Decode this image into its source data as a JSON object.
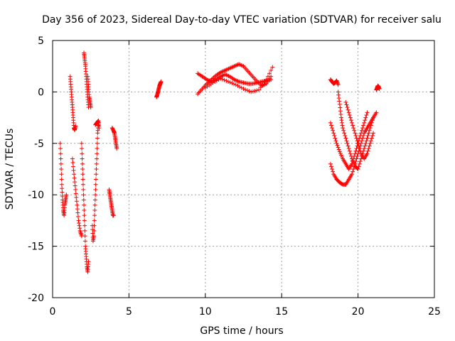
{
  "chart_data": {
    "type": "scatter",
    "title": "Day 356 of 2023, Sidereal Day-to-day VTEC variation (SDTVAR) for receiver salu",
    "xlabel": "GPS time / hours",
    "ylabel": "SDTVAR / TECUs",
    "xlim": [
      0,
      25
    ],
    "ylim": [
      -20,
      5
    ],
    "xticks": [
      0,
      5,
      10,
      15,
      20,
      25
    ],
    "yticks": [
      -20,
      -15,
      -10,
      -5,
      0,
      5
    ],
    "grid": true,
    "marker": "+",
    "color": "#ff0000",
    "series": [
      {
        "name": "SDTVAR",
        "tracks": [
          {
            "x": [
              0.5,
              0.55,
              0.6,
              0.65,
              0.7,
              0.75,
              0.8,
              0.85,
              0.9
            ],
            "y": [
              -5,
              -7,
              -9,
              -10.5,
              -11.5,
              -12,
              -11,
              -10.5,
              -10
            ]
          },
          {
            "x": [
              1.15,
              1.2,
              1.25,
              1.3,
              1.35,
              1.4,
              1.45,
              1.5
            ],
            "y": [
              1.5,
              0.5,
              -0.5,
              -1.5,
              -2.5,
              -3.5,
              -3.7,
              -3.3
            ]
          },
          {
            "x": [
              1.3,
              1.4,
              1.5,
              1.6,
              1.7,
              1.8,
              1.9
            ],
            "y": [
              -6.5,
              -8,
              -9.5,
              -11,
              -12.5,
              -13.5,
              -14
            ]
          },
          {
            "x": [
              1.9,
              1.95,
              2.0,
              2.05,
              2.1,
              2.15,
              2.2,
              2.25,
              2.3,
              2.35
            ],
            "y": [
              -5,
              -7,
              -9,
              -11,
              -13,
              -15,
              -16,
              -17,
              -17.5,
              -16.5
            ]
          },
          {
            "x": [
              2.05,
              2.1,
              2.15,
              2.2,
              2.25,
              2.3,
              2.35
            ],
            "y": [
              3.8,
              3.2,
              2.5,
              1.5,
              0.5,
              -0.5,
              -1.5
            ]
          },
          {
            "x": [
              2.3,
              2.35,
              2.4,
              2.45,
              2.5
            ],
            "y": [
              1.5,
              0.5,
              -0.5,
              -1,
              -1.5
            ]
          },
          {
            "x": [
              2.6,
              2.65,
              2.7,
              2.75,
              2.8,
              2.85,
              2.9,
              2.95,
              3.0
            ],
            "y": [
              -13,
              -14.5,
              -14,
              -12,
              -10,
              -8,
              -6,
              -4,
              -3
            ]
          },
          {
            "x": [
              2.8,
              2.9,
              3.0,
              3.05
            ],
            "y": [
              -3.2,
              -3,
              -2.8,
              -3.5
            ]
          },
          {
            "x": [
              3.7,
              3.75,
              3.8,
              3.85,
              3.9,
              3.95,
              4.0
            ],
            "y": [
              -9.5,
              -10,
              -10.5,
              -11,
              -11.5,
              -12,
              -12
            ]
          },
          {
            "x": [
              3.9,
              4.0,
              4.05,
              4.1,
              4.15,
              4.2
            ],
            "y": [
              -3.5,
              -3.8,
              -4,
              -4.5,
              -5,
              -5.5
            ]
          },
          {
            "x": [
              6.8,
              6.85,
              6.9,
              6.95,
              7.0,
              7.05,
              7.1
            ],
            "y": [
              -0.5,
              -0.3,
              0,
              0.3,
              0.6,
              0.8,
              1
            ]
          },
          {
            "x": [
              9.5,
              9.8,
              10.1,
              10.4,
              10.7,
              11.0,
              11.3,
              11.6,
              11.9,
              12.2,
              12.5,
              12.8,
              13.1,
              13.4,
              13.7,
              14.0,
              14.3
            ],
            "y": [
              1.8,
              1.5,
              1.2,
              1.0,
              1.2,
              1.5,
              1.7,
              1.5,
              1.2,
              1.0,
              0.9,
              0.8,
              0.8,
              0.9,
              1.0,
              1.1,
              1.2
            ]
          },
          {
            "x": [
              9.5,
              9.8,
              10.1,
              10.4,
              10.7,
              11.0,
              11.3,
              11.6,
              11.9,
              12.2,
              12.5,
              12.8,
              13.1,
              13.4,
              13.7,
              14.0,
              14.3
            ],
            "y": [
              -0.2,
              0.3,
              0.8,
              1.2,
              1.6,
              1.9,
              2.1,
              2.3,
              2.5,
              2.7,
              2.5,
              2.0,
              1.5,
              1.0,
              0.6,
              0.8,
              1.5
            ]
          },
          {
            "x": [
              10.0,
              10.5,
              11.0,
              11.5,
              12.0,
              12.5,
              13.0,
              13.5,
              14.0,
              14.4
            ],
            "y": [
              0.4,
              0.9,
              1.3,
              1.0,
              0.7,
              0.3,
              0.0,
              0.2,
              1.2,
              2.4
            ]
          },
          {
            "x": [
              18.2,
              18.3,
              18.4,
              18.5,
              18.6,
              18.7
            ],
            "y": [
              1.2,
              1.0,
              0.8,
              0.9,
              1.1,
              0.7
            ]
          },
          {
            "x": [
              18.7,
              18.8,
              18.9,
              19.0,
              19.2,
              19.4,
              19.6,
              19.8,
              20.0,
              20.2,
              20.4,
              20.6,
              20.8,
              21.0
            ],
            "y": [
              0,
              -1.2,
              -2.5,
              -3.5,
              -4.5,
              -5.5,
              -6.5,
              -7.2,
              -7.5,
              -6.5,
              -5.5,
              -4.5,
              -3.5,
              -2.5
            ]
          },
          {
            "x": [
              18.2,
              18.4,
              18.6,
              18.8,
              19.0,
              19.2,
              19.4,
              19.6,
              19.8,
              20.0,
              20.2,
              20.4,
              20.6
            ],
            "y": [
              -3,
              -4,
              -5,
              -5.8,
              -6.5,
              -7,
              -7.5,
              -7,
              -6,
              -5,
              -4,
              -3,
              -2
            ]
          },
          {
            "x": [
              18.2,
              18.4,
              18.6,
              18.8,
              19.0,
              19.2,
              19.4,
              19.6,
              19.8,
              20.0,
              20.2,
              20.4,
              20.6,
              20.8,
              21.0,
              21.2
            ],
            "y": [
              -7,
              -8,
              -8.5,
              -8.8,
              -9,
              -9,
              -8.5,
              -8,
              -7,
              -6,
              -5,
              -4,
              -3.5,
              -3,
              -2.5,
              -2
            ]
          },
          {
            "x": [
              19.2,
              19.4,
              19.6,
              19.8,
              20.0,
              20.2,
              20.4,
              20.6,
              20.8,
              21.0
            ],
            "y": [
              -1,
              -2,
              -3,
              -4,
              -5,
              -6,
              -6.5,
              -6,
              -5,
              -4
            ]
          },
          {
            "x": [
              21.2,
              21.25,
              21.3,
              21.35,
              21.4
            ],
            "y": [
              0.2,
              0.4,
              0.6,
              0.5,
              0.3
            ]
          }
        ]
      }
    ]
  }
}
